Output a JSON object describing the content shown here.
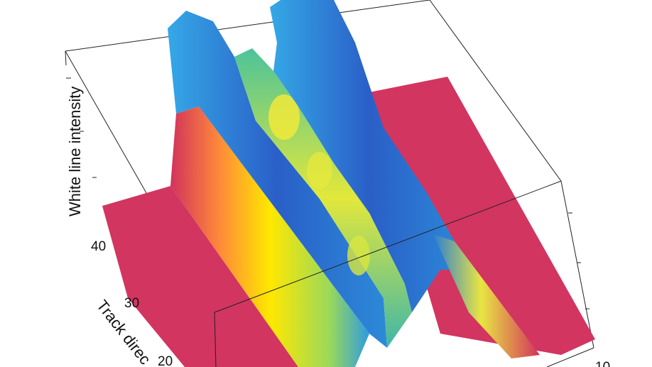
{
  "chart_data": {
    "type": "surface",
    "title": "",
    "zlabel": "White line intensity",
    "ylabel": "Track direc",
    "y_ticks": [
      "20",
      "30",
      "40"
    ],
    "x_ticks": [
      "10"
    ],
    "colormap": [
      "#d2335c",
      "#ffe800",
      "#2b8fd8",
      "#2a55c0"
    ],
    "grid": false,
    "ridges": [
      {
        "name": "",
        "color": "#2a6ccd",
        "height": 0.95
      },
      {
        "name": "",
        "color": "#7ccb63",
        "height": 0.75
      },
      {
        "name": "",
        "color": "#2a6ccd",
        "height": 0.95
      }
    ]
  }
}
